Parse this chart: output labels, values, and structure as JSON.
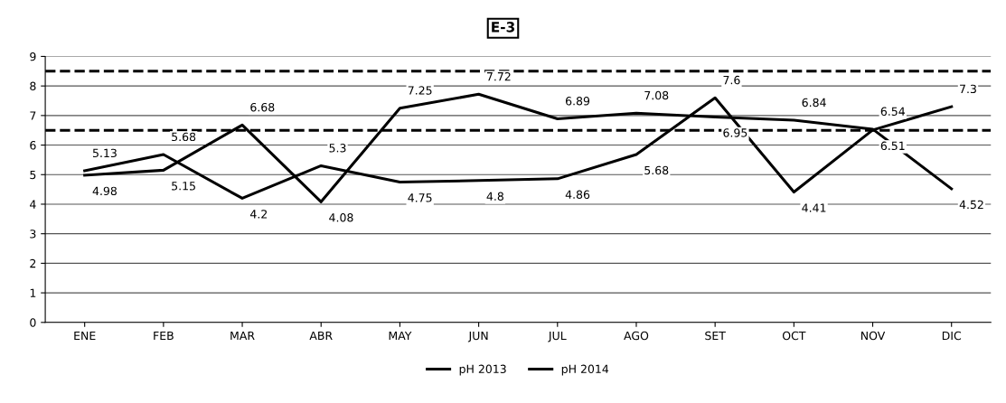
{
  "chart_data": {
    "type": "line",
    "title": "E-3",
    "categories": [
      "ENE",
      "FEB",
      "MAR",
      "ABR",
      "MAY",
      "JUN",
      "JUL",
      "AGO",
      "SET",
      "OCT",
      "NOV",
      "DIC"
    ],
    "series": [
      {
        "name": "pH 2013",
        "color": "#000000",
        "values": [
          5.13,
          5.68,
          4.2,
          5.3,
          4.75,
          4.8,
          4.86,
          5.68,
          7.6,
          4.41,
          6.51,
          7.3
        ]
      },
      {
        "name": "pH 2014",
        "color": "#000000",
        "values": [
          4.98,
          5.15,
          6.68,
          4.08,
          7.25,
          7.72,
          6.89,
          7.08,
          6.95,
          6.84,
          6.54,
          4.52
        ]
      }
    ],
    "ylim": [
      0,
      9
    ],
    "yticks": [
      0,
      1,
      2,
      3,
      4,
      5,
      6,
      7,
      8,
      9
    ],
    "grid": "y",
    "legend": "bottom",
    "data_labels": true,
    "marker": "none",
    "line_style": "solid",
    "ref_lines": [
      {
        "axis": "y",
        "value": 6.5,
        "color": "#000000",
        "line_style": "dashed"
      },
      {
        "axis": "y",
        "value": 8.5,
        "color": "#000000",
        "line_style": "dashed"
      }
    ]
  }
}
